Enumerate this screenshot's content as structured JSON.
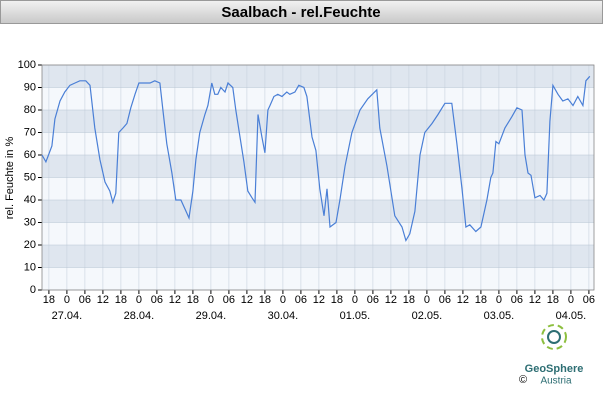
{
  "chart_data": {
    "type": "line",
    "title": "Saalbach - rel.Feuchte",
    "y_label": "rel. Feuchte in %",
    "xlim": [
      -8.3,
      175.7
    ],
    "ylim": [
      0,
      100
    ],
    "yticks": [
      0,
      10,
      20,
      30,
      40,
      50,
      60,
      70,
      80,
      90,
      100
    ],
    "xticks": [
      {
        "value": -6,
        "label": "18"
      },
      {
        "value": 0,
        "label": "0"
      },
      {
        "value": 6,
        "label": "06"
      },
      {
        "value": 12,
        "label": "12"
      },
      {
        "value": 18,
        "label": "18"
      },
      {
        "value": 24,
        "label": "0"
      },
      {
        "value": 30,
        "label": "06"
      },
      {
        "value": 36,
        "label": "12"
      },
      {
        "value": 42,
        "label": "18"
      },
      {
        "value": 48,
        "label": "0"
      },
      {
        "value": 54,
        "label": "06"
      },
      {
        "value": 60,
        "label": "12"
      },
      {
        "value": 66,
        "label": "18"
      },
      {
        "value": 72,
        "label": "0"
      },
      {
        "value": 78,
        "label": "06"
      },
      {
        "value": 84,
        "label": "12"
      },
      {
        "value": 90,
        "label": "18"
      },
      {
        "value": 96,
        "label": "0"
      },
      {
        "value": 102,
        "label": "06"
      },
      {
        "value": 108,
        "label": "12"
      },
      {
        "value": 114,
        "label": "18"
      },
      {
        "value": 120,
        "label": "0"
      },
      {
        "value": 126,
        "label": "06"
      },
      {
        "value": 132,
        "label": "12"
      },
      {
        "value": 138,
        "label": "18"
      },
      {
        "value": 144,
        "label": "0"
      },
      {
        "value": 150,
        "label": "06"
      },
      {
        "value": 156,
        "label": "12"
      },
      {
        "value": 162,
        "label": "18"
      },
      {
        "value": 168,
        "label": "0"
      },
      {
        "value": 174,
        "label": "06"
      }
    ],
    "x_dates": [
      {
        "value": 0,
        "label": "27.04."
      },
      {
        "value": 24,
        "label": "28.04."
      },
      {
        "value": 48,
        "label": "29.04."
      },
      {
        "value": 72,
        "label": "30.04."
      },
      {
        "value": 96,
        "label": "01.05."
      },
      {
        "value": 120,
        "label": "02.05."
      },
      {
        "value": 144,
        "label": "03.05."
      },
      {
        "value": 168,
        "label": "04.05."
      }
    ],
    "grid": true,
    "series": [
      {
        "color": "#4a7fd6",
        "x": [
          -8.3,
          -7,
          -5,
          -4,
          -2.3,
          -0.7,
          1,
          2.7,
          4.3,
          6.3,
          7.7,
          9.3,
          11,
          12.7,
          14.3,
          15.3,
          16.3,
          17.3,
          18.7,
          20,
          21.3,
          22.7,
          24,
          26,
          27.7,
          29.3,
          31,
          32,
          33.3,
          35,
          36.3,
          38,
          39.7,
          40.7,
          42,
          43,
          44.3,
          46,
          47,
          48.3,
          49.3,
          50.3,
          51.3,
          52.7,
          53.7,
          55.3,
          56.3,
          57.7,
          59,
          60.3,
          61.7,
          62.7,
          63.7,
          65,
          66,
          67,
          67.7,
          69,
          70.3,
          71.7,
          73.3,
          74.3,
          76,
          77.3,
          79,
          80,
          81.7,
          83,
          84.3,
          85.7,
          86.7,
          87.7,
          89.7,
          91,
          92.7,
          95,
          97.7,
          100.3,
          103.3,
          104.3,
          106.7,
          109.3,
          111.7,
          113,
          114.3,
          116,
          117.7,
          119.3,
          121.7,
          123.7,
          126,
          128.3,
          130,
          131.7,
          133,
          134.3,
          136.3,
          138,
          140,
          141.3,
          142,
          143,
          144,
          146,
          148.3,
          150,
          151.7,
          152.7,
          153.7,
          154.7,
          156,
          157.7,
          159,
          160,
          161,
          162,
          163.7,
          165.3,
          167,
          168.7,
          170.3,
          172,
          173,
          174.3
        ],
        "values": [
          60,
          57,
          64,
          76,
          84,
          88,
          91,
          92,
          93,
          93,
          91,
          72,
          58,
          48,
          44,
          39,
          43,
          70,
          72,
          74,
          81,
          87,
          92,
          92,
          92,
          93,
          92,
          80,
          65,
          52,
          40,
          40,
          35,
          32,
          44,
          58,
          70,
          78,
          82,
          92,
          87,
          87,
          90,
          88,
          92,
          90,
          80,
          68,
          57,
          44,
          41,
          39,
          78,
          68,
          61,
          80,
          82,
          86,
          87,
          86,
          88,
          87,
          88,
          91,
          90,
          86,
          68,
          62,
          45,
          33,
          45,
          28,
          30,
          40,
          55,
          70,
          80,
          85,
          89,
          72,
          55,
          33,
          28,
          22,
          25,
          35,
          60,
          70,
          74,
          78,
          83,
          83,
          65,
          45,
          28,
          29,
          26,
          28,
          40,
          50,
          52,
          66,
          65,
          72,
          77,
          81,
          80,
          60,
          52,
          51,
          41,
          42,
          40,
          43,
          75,
          91,
          87,
          84,
          85,
          82,
          86,
          82,
          93,
          95
        ]
      }
    ]
  },
  "logo": {
    "name": "GeoSphere",
    "sub": "Austria",
    "copyright": "©"
  }
}
